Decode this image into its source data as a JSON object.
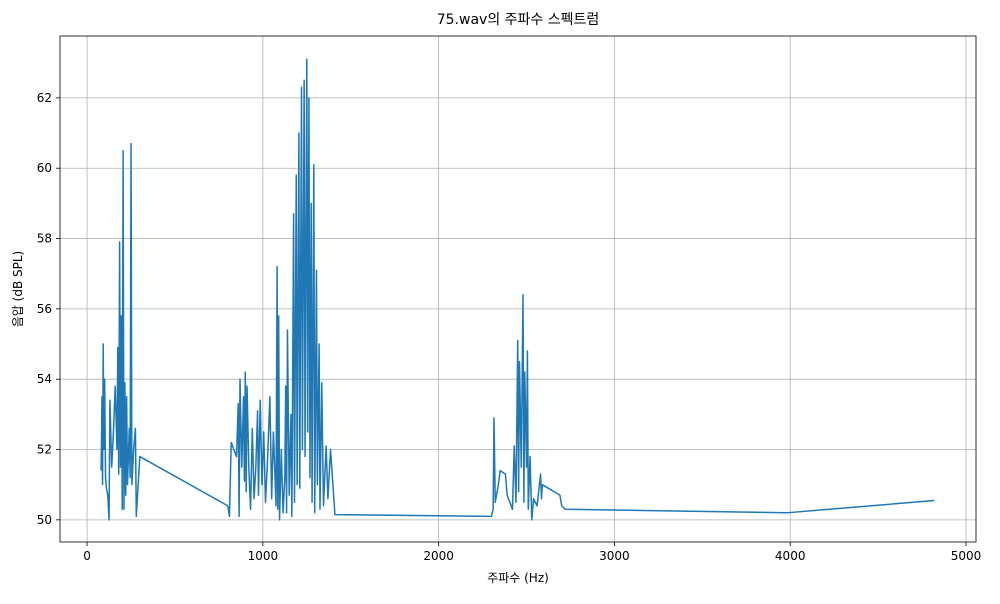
{
  "chart_data": {
    "type": "line",
    "title": "75.wav의 주파수 스펙트럼",
    "xlabel": "주파수 (Hz)",
    "ylabel": "음압 (dB SPL)",
    "grid": true,
    "xlim": [
      -154,
      5057
    ],
    "ylim": [
      49.37,
      63.76
    ],
    "xticks": [
      0,
      1000,
      2000,
      3000,
      4000,
      5000
    ],
    "yticks": [
      50,
      52,
      54,
      56,
      58,
      60,
      62
    ],
    "series": [
      {
        "color": "#1f77b4",
        "x": [
          80,
          85,
          88,
          92,
          95,
          100,
          105,
          110,
          118,
          125,
          130,
          140,
          150,
          160,
          170,
          175,
          180,
          185,
          190,
          195,
          200,
          205,
          210,
          215,
          220,
          225,
          230,
          240,
          245,
          250,
          255,
          265,
          275,
          280,
          300,
          800,
          810,
          820,
          850,
          860,
          865,
          870,
          880,
          890,
          895,
          900,
          905,
          910,
          920,
          930,
          940,
          950,
          960,
          970,
          975,
          985,
          995,
          1005,
          1015,
          1025,
          1040,
          1050,
          1060,
          1075,
          1081,
          1085,
          1090,
          1095,
          1105,
          1115,
          1125,
          1130,
          1135,
          1140,
          1150,
          1160,
          1165,
          1175,
          1180,
          1190,
          1195,
          1205,
          1210,
          1220,
          1225,
          1235,
          1240,
          1250,
          1255,
          1262,
          1268,
          1275,
          1280,
          1290,
          1295,
          1305,
          1310,
          1320,
          1325,
          1335,
          1345,
          1360,
          1370,
          1385,
          1410,
          2300,
          2310,
          2315,
          2322,
          2340,
          2350,
          2380,
          2390,
          2420,
          2430,
          2440,
          2450,
          2455,
          2460,
          2470,
          2480,
          2485,
          2490,
          2500,
          2505,
          2510,
          2520,
          2530,
          2540,
          2560,
          2580,
          2585,
          2590,
          2690,
          2700,
          2720,
          3980,
          4820
        ],
        "values": [
          51.4,
          53.5,
          51,
          55,
          52,
          54,
          51.2,
          50.9,
          50.7,
          50,
          53.4,
          51.5,
          52.5,
          53.8,
          52,
          54.9,
          51.3,
          57.9,
          51.5,
          55.8,
          50.3,
          60.5,
          50.3,
          53.9,
          50.7,
          53.5,
          51,
          52.6,
          51.2,
          60.7,
          51,
          52,
          52.6,
          50.1,
          51.8,
          50.4,
          50.1,
          52.2,
          51.8,
          53.3,
          50.1,
          54,
          51.5,
          53.5,
          51.1,
          54.2,
          50.8,
          53.8,
          51.5,
          50.3,
          52.6,
          50.6,
          51.5,
          53.1,
          50.7,
          53.4,
          51,
          52.5,
          50.5,
          51.5,
          53.5,
          50.6,
          52.5,
          50.4,
          57.2,
          50.3,
          55.8,
          50,
          52,
          50.2,
          51.2,
          53.8,
          50.2,
          55.4,
          50.7,
          53,
          50.1,
          58.7,
          50.5,
          59.8,
          51,
          61,
          50.9,
          62.3,
          52,
          62.5,
          51.8,
          63.1,
          52.5,
          62,
          51.2,
          59,
          50.5,
          60.1,
          50.2,
          57.1,
          51,
          55,
          50.3,
          53.9,
          50.4,
          52.1,
          50.6,
          52,
          50.15,
          50.1,
          50.3,
          52.9,
          50.5,
          51,
          51.4,
          51.3,
          50.7,
          50.3,
          52.1,
          50.5,
          55.1,
          50.8,
          54.5,
          51.5,
          56.4,
          50.5,
          54.2,
          51.5,
          54.8,
          50.3,
          51.8,
          50,
          50.6,
          50.4,
          51.3,
          50.6,
          51,
          50.7,
          50.4,
          50.3,
          50.2,
          50.55
        ]
      }
    ]
  }
}
